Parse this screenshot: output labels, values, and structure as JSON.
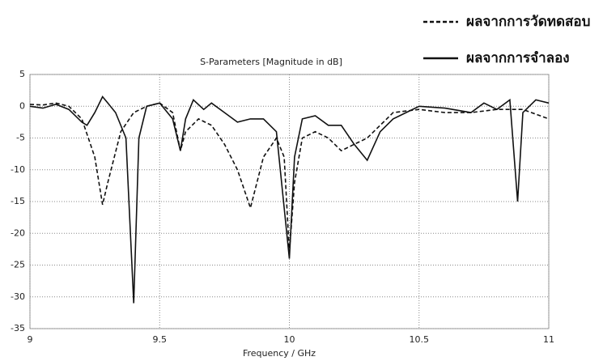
{
  "chart_data": {
    "type": "line",
    "title": "S-Parameters [Magnitude in dB]",
    "x_label": "Frequency / GHz",
    "xlim": [
      9,
      11
    ],
    "xticks": [
      9,
      9.5,
      10,
      10.5,
      11
    ],
    "ylim": [
      -35,
      5
    ],
    "yticks": [
      5,
      0,
      -5,
      -10,
      -15,
      -20,
      -25,
      -30,
      -35
    ],
    "grid": true,
    "series": [
      {
        "name": "ผลจากการวัดทดสอบ",
        "color": "#111111",
        "line_style": "dashed",
        "x": [
          9.0,
          9.05,
          9.1,
          9.15,
          9.2,
          9.25,
          9.28,
          9.3,
          9.35,
          9.4,
          9.45,
          9.5,
          9.55,
          9.58,
          9.6,
          9.65,
          9.7,
          9.75,
          9.8,
          9.85,
          9.9,
          9.95,
          9.98,
          10.0,
          10.02,
          10.05,
          10.1,
          10.15,
          10.2,
          10.25,
          10.3,
          10.35,
          10.4,
          10.5,
          10.6,
          10.7,
          10.8,
          10.9,
          11.0
        ],
        "values": [
          0.3,
          0.2,
          0.5,
          0,
          -2,
          -8,
          -15.5,
          -12,
          -4,
          -1,
          0,
          0.5,
          -1,
          -7,
          -4,
          -2,
          -3,
          -6,
          -10,
          -16,
          -8,
          -5,
          -8,
          -23,
          -12,
          -5,
          -4,
          -5,
          -7,
          -6,
          -5,
          -3,
          -1,
          -0.5,
          -1,
          -1,
          -0.5,
          -0.5,
          -2
        ]
      },
      {
        "name": "ผลจากการจำลอง",
        "color": "#111111",
        "line_style": "solid",
        "x": [
          9.0,
          9.05,
          9.1,
          9.15,
          9.2,
          9.22,
          9.25,
          9.28,
          9.3,
          9.33,
          9.37,
          9.4,
          9.42,
          9.45,
          9.5,
          9.55,
          9.58,
          9.6,
          9.63,
          9.67,
          9.7,
          9.75,
          9.8,
          9.85,
          9.9,
          9.95,
          10.0,
          10.02,
          10.05,
          10.1,
          10.15,
          10.2,
          10.25,
          10.3,
          10.35,
          10.4,
          10.5,
          10.6,
          10.7,
          10.75,
          10.8,
          10.85,
          10.88,
          10.9,
          10.95,
          11.0
        ],
        "values": [
          0,
          -0.3,
          0.3,
          -0.5,
          -2.5,
          -3,
          -1,
          1.5,
          0.5,
          -1,
          -5,
          -31,
          -5,
          0,
          0.5,
          -2,
          -7,
          -2,
          1,
          -0.5,
          0.5,
          -1,
          -2.5,
          -2,
          -2,
          -4,
          -24,
          -8,
          -2,
          -1.5,
          -3,
          -3,
          -6,
          -8.5,
          -4,
          -2,
          0,
          -0.3,
          -1,
          0.5,
          -0.5,
          1,
          -15,
          -1,
          1,
          0.5
        ]
      }
    ]
  }
}
